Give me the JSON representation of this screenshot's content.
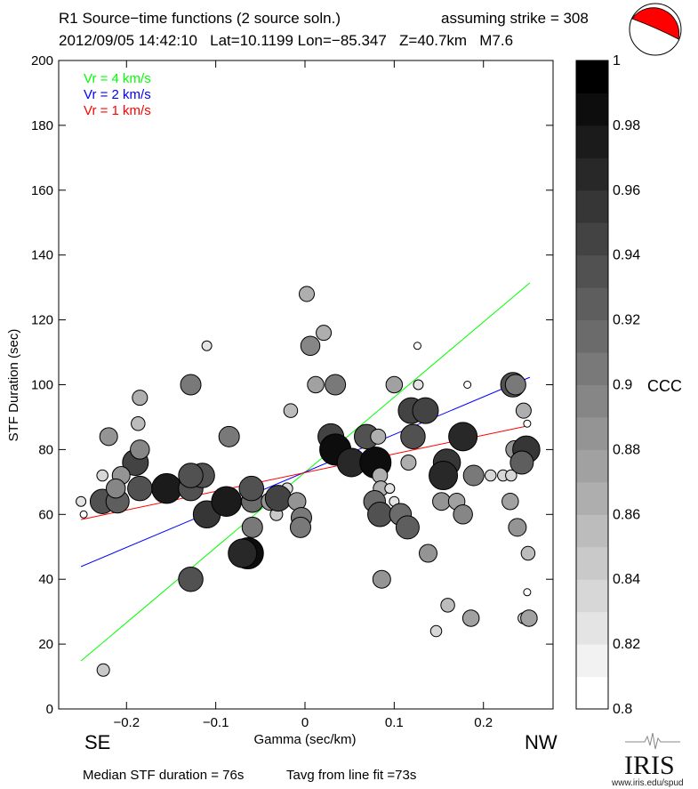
{
  "header": {
    "title": "R1 Source−time functions (2 source soln.)",
    "strike": "assuming strike = 308",
    "event": "2012/09/05 14:42:10   Lat=10.1199 Lon=−85.347   Z=40.7km   M7.6"
  },
  "footer": {
    "median": "Median STF duration = 76s",
    "tavg": "Tavg from line fit =73s",
    "logo": "IRIS",
    "logo_url": "www.iris.edu/spud"
  },
  "colors": {
    "green": "#00ff00",
    "blue": "#0000ff",
    "red": "#ff0000",
    "beachball": "#ff0000"
  },
  "chart_data": {
    "type": "scatter",
    "title": "R1 Source−time functions (2 source soln.)",
    "xlabel": "Gamma (sec/km)",
    "ylabel": "STF Duration (sec)",
    "xlim": [
      -0.276,
      0.278
    ],
    "ylim": [
      0,
      200
    ],
    "xticks": [
      -0.2,
      -0.1,
      0,
      0.1,
      0.2
    ],
    "xtick_labels": [
      "−0.2",
      "−0.1",
      "0",
      "0.1",
      "0.2"
    ],
    "yticks": [
      0,
      20,
      40,
      60,
      80,
      100,
      120,
      140,
      160,
      180,
      200
    ],
    "ytick_labels": [
      "0",
      "20",
      "40",
      "60",
      "80",
      "100",
      "120",
      "140",
      "160",
      "180",
      "200"
    ],
    "direction_labels": {
      "left": "SE",
      "right": "NW"
    },
    "legend": [
      {
        "label": "Vr = 4 km/s",
        "color": "#00ff00"
      },
      {
        "label": "Vr = 2 km/s",
        "color": "#0000ff"
      },
      {
        "label": "Vr = 1 km/s",
        "color": "#ff0000"
      }
    ],
    "legend_position": "top-left",
    "lines": [
      {
        "name": "Vr = 4 km/s",
        "color": "#00ff00",
        "x": [
          -0.251,
          0.252
        ],
        "y": [
          14.8,
          131.4
        ]
      },
      {
        "name": "Vr = 2 km/s",
        "color": "#0000ff",
        "x": [
          -0.251,
          0.252
        ],
        "y": [
          43.9,
          102.3
        ]
      },
      {
        "name": "Vr = 1 km/s",
        "color": "#ff0000",
        "x": [
          -0.251,
          0.248
        ],
        "y": [
          58.4,
          87.2
        ]
      }
    ],
    "colorbar": {
      "label": "CCC",
      "range": [
        0.8,
        1.0
      ],
      "bins": 20,
      "tick_values": [
        0.8,
        0.82,
        0.84,
        0.86,
        0.88,
        0.9,
        0.92,
        0.94,
        0.96,
        0.98,
        1.0
      ],
      "tick_labels": [
        "0.8",
        "0.82",
        "0.84",
        "0.86",
        "0.88",
        "0.9",
        "0.92",
        "0.94",
        "0.96",
        "0.98",
        "1"
      ]
    },
    "points_fields": [
      "gamma",
      "duration",
      "ccc"
    ],
    "points": [
      [
        -0.251,
        64,
        0.82
      ],
      [
        -0.248,
        60,
        0.8
      ],
      [
        -0.226,
        12,
        0.84
      ],
      [
        -0.227,
        72,
        0.83
      ],
      [
        -0.22,
        84,
        0.88
      ],
      [
        -0.227,
        64,
        0.93
      ],
      [
        -0.21,
        64,
        0.92
      ],
      [
        -0.19,
        76,
        0.94
      ],
      [
        -0.206,
        72,
        0.88
      ],
      [
        -0.185,
        80,
        0.89
      ],
      [
        -0.212,
        68,
        0.89
      ],
      [
        -0.185,
        68,
        0.93
      ],
      [
        -0.185,
        96,
        0.86
      ],
      [
        -0.187,
        88,
        0.85
      ],
      [
        -0.155,
        68,
        0.97
      ],
      [
        -0.128,
        68,
        0.93
      ],
      [
        -0.115,
        72,
        0.93
      ],
      [
        -0.128,
        72,
        0.93
      ],
      [
        -0.128,
        100,
        0.9
      ],
      [
        -0.11,
        112,
        0.82
      ],
      [
        -0.085,
        84,
        0.9
      ],
      [
        -0.11,
        60,
        0.95
      ],
      [
        -0.088,
        64,
        0.97
      ],
      [
        -0.059,
        64,
        0.91
      ],
      [
        -0.06,
        68,
        0.93
      ],
      [
        -0.059,
        56,
        0.9
      ],
      [
        -0.064,
        48,
        0.98
      ],
      [
        -0.07,
        48,
        0.96
      ],
      [
        -0.128,
        40,
        0.93
      ],
      [
        -0.02,
        68,
        0.83
      ],
      [
        -0.032,
        60,
        0.84
      ],
      [
        -0.039,
        64,
        0.88
      ],
      [
        -0.03,
        65,
        0.94
      ],
      [
        -0.009,
        64,
        0.88
      ],
      [
        -0.004,
        59,
        0.9
      ],
      [
        -0.005,
        56,
        0.9
      ],
      [
        0.002,
        128,
        0.86
      ],
      [
        0.021,
        116,
        0.86
      ],
      [
        0.006,
        112,
        0.89
      ],
      [
        0.012,
        100,
        0.87
      ],
      [
        0.034,
        100,
        0.9
      ],
      [
        -0.016,
        92,
        0.85
      ],
      [
        0.1,
        100,
        0.87
      ],
      [
        0.127,
        100,
        0.82
      ],
      [
        0.126,
        112,
        0.8
      ],
      [
        0.182,
        100,
        0.8
      ],
      [
        0.233,
        100,
        0.93
      ],
      [
        0.236,
        100,
        0.9
      ],
      [
        0.245,
        92,
        0.86
      ],
      [
        0.249,
        88,
        0.8
      ],
      [
        0.119,
        92,
        0.94
      ],
      [
        0.135,
        92,
        0.94
      ],
      [
        0.029,
        84,
        0.94
      ],
      [
        0.034,
        80,
        0.98
      ],
      [
        0.052,
        76,
        0.96
      ],
      [
        0.079,
        76,
        0.98
      ],
      [
        0.069,
        84,
        0.93
      ],
      [
        0.082,
        84,
        0.86
      ],
      [
        0.121,
        84,
        0.93
      ],
      [
        0.177,
        84,
        0.96
      ],
      [
        0.116,
        76,
        0.86
      ],
      [
        0.159,
        76,
        0.95
      ],
      [
        0.155,
        72,
        0.96
      ],
      [
        0.189,
        72,
        0.9
      ],
      [
        0.208,
        72,
        0.83
      ],
      [
        0.222,
        72,
        0.83
      ],
      [
        0.231,
        72,
        0.83
      ],
      [
        0.235,
        80,
        0.88
      ],
      [
        0.248,
        80,
        0.95
      ],
      [
        0.243,
        76,
        0.92
      ],
      [
        0.084,
        72,
        0.86
      ],
      [
        0.085,
        68,
        0.86
      ],
      [
        0.095,
        68,
        0.82
      ],
      [
        0.1,
        64,
        0.82
      ],
      [
        0.078,
        64,
        0.91
      ],
      [
        0.084,
        60,
        0.93
      ],
      [
        0.107,
        60,
        0.91
      ],
      [
        0.115,
        56,
        0.92
      ],
      [
        0.153,
        64,
        0.88
      ],
      [
        0.17,
        64,
        0.87
      ],
      [
        0.177,
        60,
        0.89
      ],
      [
        0.23,
        64,
        0.87
      ],
      [
        0.238,
        56,
        0.88
      ],
      [
        0.138,
        48,
        0.88
      ],
      [
        0.25,
        48,
        0.85
      ],
      [
        0.086,
        40,
        0.88
      ],
      [
        0.249,
        36,
        0.8
      ],
      [
        0.16,
        32,
        0.85
      ],
      [
        0.186,
        28,
        0.87
      ],
      [
        0.147,
        24,
        0.83
      ],
      [
        0.245,
        28,
        0.83
      ],
      [
        0.251,
        28,
        0.87
      ]
    ]
  }
}
